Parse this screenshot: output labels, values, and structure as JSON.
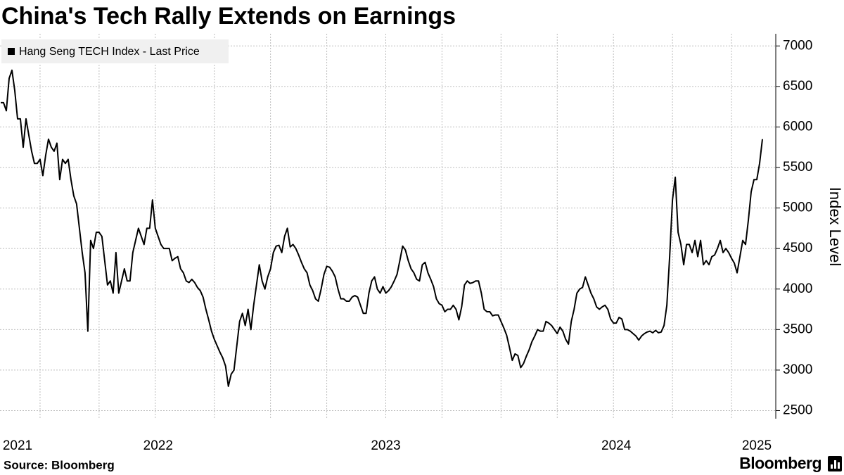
{
  "chart_data": {
    "type": "line",
    "title": "China's Tech Rally Extends on Earnings",
    "ylabel": "Index Level",
    "source": "Source: Bloomberg",
    "brand": "Bloomberg",
    "legend": "upper left",
    "grid": true,
    "ylim": [
      2400,
      7150
    ],
    "yticks": [
      2500,
      3000,
      3500,
      4000,
      4500,
      5000,
      5500,
      6000,
      6500,
      7000
    ],
    "xgrid": [
      14,
      35,
      55,
      76,
      96,
      116,
      137,
      157,
      178,
      198,
      218,
      239,
      260
    ],
    "categories": [
      null,
      null,
      null,
      null,
      null,
      null,
      "2021",
      null,
      null,
      null,
      null,
      null,
      null,
      null,
      null,
      null,
      null,
      null,
      null,
      null,
      null,
      null,
      null,
      null,
      null,
      null,
      null,
      null,
      null,
      null,
      null,
      null,
      null,
      null,
      null,
      null,
      null,
      null,
      null,
      null,
      null,
      null,
      null,
      null,
      null,
      null,
      null,
      null,
      null,
      null,
      null,
      null,
      null,
      null,
      null,
      null,
      "2022",
      null,
      null,
      null,
      null,
      null,
      null,
      null,
      null,
      null,
      null,
      null,
      null,
      null,
      null,
      null,
      null,
      null,
      null,
      null,
      null,
      null,
      null,
      null,
      null,
      null,
      null,
      null,
      null,
      null,
      null,
      null,
      null,
      null,
      null,
      null,
      null,
      null,
      null,
      null,
      null,
      null,
      null,
      null,
      null,
      null,
      null,
      null,
      null,
      null,
      null,
      null,
      null,
      null,
      null,
      null,
      null,
      null,
      null,
      null,
      null,
      null,
      null,
      null,
      null,
      null,
      null,
      null,
      null,
      null,
      null,
      null,
      null,
      null,
      null,
      null,
      null,
      null,
      null,
      null,
      null,
      "2023",
      null,
      null,
      null,
      null,
      null,
      null,
      null,
      null,
      null,
      null,
      null,
      null,
      null,
      null,
      null,
      null,
      null,
      null,
      null,
      null,
      null,
      null,
      null,
      null,
      null,
      null,
      null,
      null,
      null,
      null,
      null,
      null,
      null,
      null,
      null,
      null,
      null,
      null,
      null,
      null,
      null,
      null,
      null,
      null,
      null,
      null,
      null,
      null,
      null,
      null,
      null,
      null,
      null,
      null,
      null,
      null,
      null,
      null,
      null,
      null,
      null,
      null,
      null,
      null,
      null,
      null,
      null,
      null,
      null,
      null,
      null,
      null,
      null,
      null,
      null,
      null,
      null,
      null,
      null,
      null,
      null,
      "2024",
      null,
      null,
      null,
      null,
      null,
      null,
      null,
      null,
      null,
      null,
      null,
      null,
      null,
      null,
      null,
      null,
      null,
      null,
      null,
      null,
      null,
      null,
      null,
      null,
      null,
      null,
      null,
      null,
      null,
      null,
      null,
      null,
      null,
      null,
      null,
      null,
      null,
      null,
      null,
      null,
      null,
      null,
      null,
      null,
      null,
      null,
      null,
      null,
      null,
      "2025",
      null,
      null
    ],
    "series": [
      {
        "name": "Hang Seng TECH Index - Last Price",
        "color": "#000000",
        "values": [
          6300,
          6300,
          6200,
          6600,
          6700,
          6450,
          6100,
          6100,
          5750,
          6100,
          5900,
          5700,
          5550,
          5550,
          5600,
          5400,
          5650,
          5850,
          5750,
          5700,
          5800,
          5350,
          5600,
          5550,
          5600,
          5350,
          5150,
          5050,
          4750,
          4450,
          4200,
          3480,
          4600,
          4500,
          4700,
          4700,
          4650,
          4350,
          4050,
          4100,
          3950,
          4450,
          3950,
          4100,
          4250,
          4100,
          4100,
          4450,
          4600,
          4750,
          4650,
          4550,
          4750,
          4750,
          5100,
          4750,
          4650,
          4550,
          4500,
          4500,
          4500,
          4350,
          4380,
          4400,
          4250,
          4200,
          4100,
          4080,
          4120,
          4080,
          4020,
          3980,
          3900,
          3750,
          3620,
          3480,
          3380,
          3300,
          3220,
          3150,
          3050,
          2800,
          2950,
          3000,
          3300,
          3600,
          3700,
          3550,
          3750,
          3500,
          3800,
          4050,
          4300,
          4100,
          4000,
          4150,
          4250,
          4450,
          4530,
          4540,
          4450,
          4650,
          4750,
          4520,
          4550,
          4500,
          4420,
          4330,
          4250,
          4200,
          4050,
          3980,
          3880,
          3850,
          4000,
          4180,
          4280,
          4270,
          4220,
          4150,
          4000,
          3880,
          3880,
          3850,
          3850,
          3900,
          3920,
          3900,
          3800,
          3700,
          3700,
          3950,
          4100,
          4150,
          4000,
          3950,
          4030,
          3950,
          3980,
          4030,
          4100,
          4180,
          4350,
          4530,
          4480,
          4350,
          4250,
          4200,
          4120,
          4100,
          4300,
          4330,
          4200,
          4120,
          4030,
          3880,
          3820,
          3800,
          3720,
          3750,
          3750,
          3800,
          3750,
          3620,
          3780,
          4050,
          4100,
          4070,
          4080,
          4100,
          4100,
          3950,
          3750,
          3720,
          3720,
          3670,
          3680,
          3680,
          3600,
          3520,
          3430,
          3280,
          3120,
          3200,
          3180,
          3030,
          3080,
          3170,
          3250,
          3350,
          3420,
          3500,
          3480,
          3480,
          3600,
          3580,
          3550,
          3500,
          3450,
          3530,
          3480,
          3380,
          3320,
          3600,
          3750,
          3950,
          4000,
          4020,
          4150,
          4050,
          3950,
          3880,
          3780,
          3750,
          3780,
          3800,
          3750,
          3630,
          3580,
          3580,
          3650,
          3630,
          3500,
          3500,
          3480,
          3450,
          3420,
          3370,
          3420,
          3450,
          3470,
          3480,
          3460,
          3490,
          3460,
          3470,
          3550,
          3800,
          4400,
          5100,
          5380,
          4700,
          4550,
          4300,
          4550,
          4550,
          4450,
          4600,
          4400,
          4600,
          4300,
          4350,
          4300,
          4400,
          4420,
          4500,
          4600,
          4450,
          4500,
          4450,
          4380,
          4320,
          4200,
          4400,
          4600,
          4550,
          4850,
          5200,
          5350,
          5350,
          5550,
          5850
        ]
      }
    ]
  }
}
